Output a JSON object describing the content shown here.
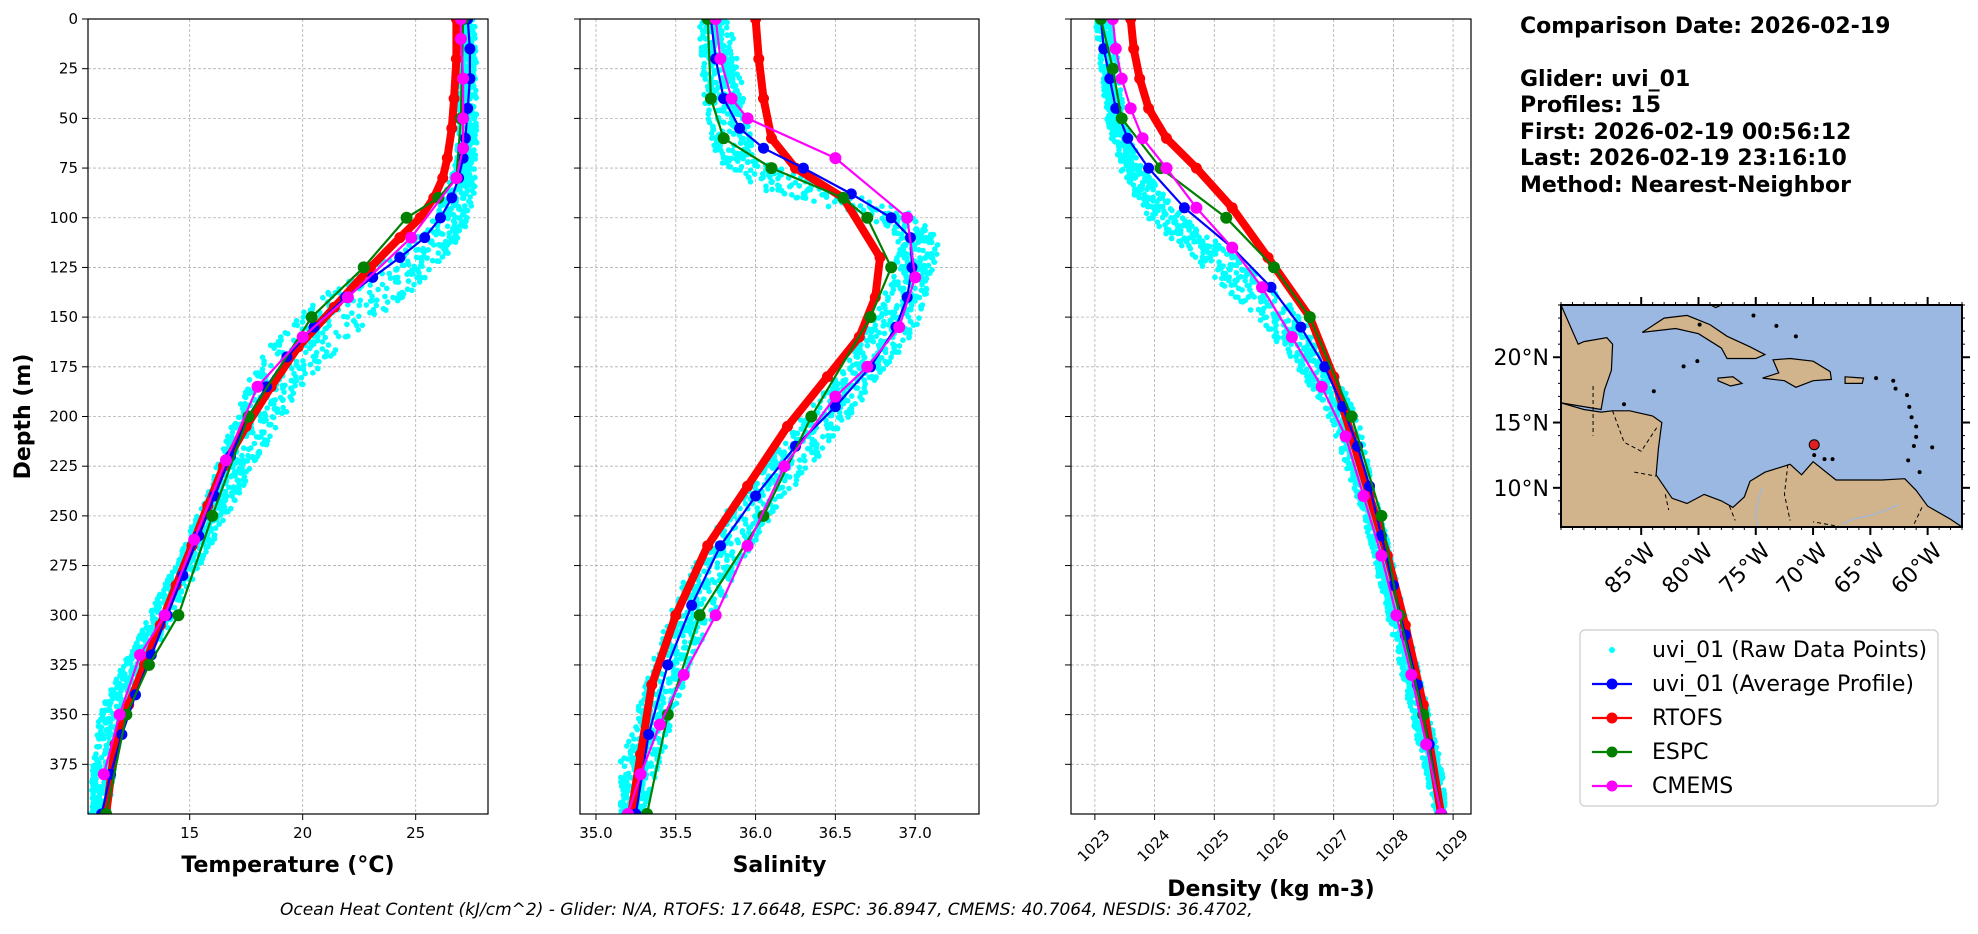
{
  "info": {
    "comparison_date": "Comparison Date: 2026-02-19",
    "glider": "Glider: uvi_01",
    "profiles": "Profiles: 15",
    "first": "First: 2026-02-19 00:56:12",
    "last": "Last: 2026-02-19 23:16:10",
    "method": "Method: Nearest-Neighbor"
  },
  "footer": "Ocean Heat Content (kJ/cm^2) - Glider: N/A,  RTOFS: 17.6648,  ESPC: 36.8947,  CMEMS: 40.7064,  NESDIS: 36.4702,",
  "colors": {
    "raw": "#00ffff",
    "average": "#0000ff",
    "rtofs": "#ff0000",
    "espc": "#008000",
    "cmems": "#ff00ff",
    "ocean": "#9ab8e2",
    "land": "#d2b48c",
    "marker": "#e02020"
  },
  "chart_data": [
    {
      "type": "line",
      "xlabel": "Temperature (°C)",
      "ylabel": "Depth (m)",
      "xlim": [
        10.5,
        28.2
      ],
      "ylim": [
        400,
        0
      ],
      "xticks": [
        15,
        20,
        25
      ],
      "yticks": [
        0,
        25,
        50,
        75,
        100,
        125,
        150,
        175,
        200,
        225,
        250,
        275,
        300,
        325,
        350,
        375
      ],
      "grid": true,
      "raw_band": [
        [
          0,
          26.8,
          27.6
        ],
        [
          25,
          26.9,
          27.7
        ],
        [
          50,
          26.9,
          27.7
        ],
        [
          70,
          26.8,
          27.7
        ],
        [
          90,
          26.2,
          27.6
        ],
        [
          105,
          25.6,
          27.2
        ],
        [
          120,
          23.8,
          26.4
        ],
        [
          140,
          20.8,
          24.5
        ],
        [
          160,
          18.8,
          22.2
        ],
        [
          180,
          17.6,
          20.3
        ],
        [
          200,
          17.0,
          19.2
        ],
        [
          225,
          16.2,
          17.8
        ],
        [
          250,
          15.3,
          16.7
        ],
        [
          275,
          14.3,
          15.5
        ],
        [
          300,
          13.2,
          14.3
        ],
        [
          325,
          12.0,
          13.1
        ],
        [
          350,
          11.0,
          12.1
        ],
        [
          375,
          10.7,
          11.7
        ],
        [
          400,
          10.6,
          11.4
        ]
      ],
      "series": [
        {
          "name": "uvi_01 (Average Profile)",
          "x": [
            27.3,
            27.4,
            27.4,
            27.3,
            27.2,
            27.1,
            26.9,
            26.6,
            26.1,
            25.4,
            24.3,
            23.1,
            21.9,
            20.5,
            19.3,
            18.4,
            17.6,
            16.8,
            16.1,
            15.4,
            14.7,
            14.0,
            13.3,
            12.6,
            12.0,
            11.5,
            11.1
          ],
          "y": [
            0,
            15,
            30,
            45,
            60,
            70,
            80,
            90,
            100,
            110,
            120,
            130,
            140,
            155,
            170,
            185,
            200,
            220,
            240,
            260,
            280,
            300,
            320,
            340,
            360,
            380,
            400
          ]
        },
        {
          "name": "RTOFS",
          "x": [
            26.8,
            26.8,
            26.7,
            26.6,
            26.4,
            26.2,
            25.8,
            25.2,
            24.3,
            23.0,
            21.4,
            19.8,
            18.6,
            17.5,
            16.5,
            15.8,
            15.1,
            14.4,
            13.7,
            13.0,
            12.3,
            11.7,
            11.3
          ],
          "y": [
            0,
            20,
            40,
            55,
            70,
            80,
            90,
            100,
            110,
            125,
            145,
            165,
            185,
            205,
            225,
            245,
            265,
            285,
            305,
            325,
            345,
            365,
            400
          ]
        },
        {
          "name": "ESPC",
          "x": [
            27.1,
            27.0,
            26.8,
            26.0,
            24.6,
            22.7,
            20.4,
            17.6,
            16.0,
            14.5,
            13.2,
            12.2,
            11.3
          ],
          "y": [
            0,
            50,
            80,
            90,
            100,
            125,
            150,
            200,
            250,
            300,
            325,
            350,
            400
          ]
        },
        {
          "name": "CMEMS",
          "x": [
            27.0,
            27.0,
            27.1,
            27.1,
            27.1,
            26.8,
            24.8,
            22.0,
            20.0,
            18.0,
            16.6,
            15.2,
            13.9,
            12.8,
            11.9,
            11.2
          ],
          "y": [
            0,
            10,
            30,
            50,
            65,
            80,
            110,
            140,
            160,
            185,
            222,
            262,
            300,
            320,
            350,
            380
          ]
        }
      ]
    },
    {
      "type": "line",
      "xlabel": "Salinity",
      "xlim": [
        34.9,
        37.4
      ],
      "ylim": [
        400,
        0
      ],
      "xticks": [
        35.0,
        35.5,
        36.0,
        36.5,
        37.0
      ],
      "tick_labels": [
        "35.0",
        "35.5",
        "36.0",
        "36.5",
        "37.0"
      ],
      "grid": true,
      "raw_band": [
        [
          0,
          35.65,
          35.85
        ],
        [
          25,
          35.65,
          35.9
        ],
        [
          50,
          35.7,
          35.95
        ],
        [
          70,
          35.75,
          36.0
        ],
        [
          85,
          36.0,
          36.45
        ],
        [
          95,
          36.5,
          36.9
        ],
        [
          105,
          36.85,
          37.1
        ],
        [
          115,
          36.9,
          37.15
        ],
        [
          130,
          36.85,
          37.1
        ],
        [
          150,
          36.75,
          37.05
        ],
        [
          175,
          36.55,
          36.85
        ],
        [
          200,
          36.3,
          36.6
        ],
        [
          225,
          36.05,
          36.35
        ],
        [
          250,
          35.8,
          36.1
        ],
        [
          275,
          35.6,
          35.9
        ],
        [
          300,
          35.45,
          35.75
        ],
        [
          325,
          35.35,
          35.6
        ],
        [
          350,
          35.25,
          35.5
        ],
        [
          375,
          35.15,
          35.4
        ],
        [
          400,
          35.15,
          35.3
        ]
      ],
      "series": [
        {
          "name": "uvi_01 (Average Profile)",
          "x": [
            35.72,
            35.75,
            35.8,
            35.9,
            36.05,
            36.3,
            36.6,
            36.85,
            36.97,
            36.98,
            36.95,
            36.88,
            36.72,
            36.5,
            36.25,
            36.0,
            35.78,
            35.6,
            35.45,
            35.33,
            35.25
          ],
          "y": [
            0,
            20,
            40,
            55,
            65,
            75,
            88,
            100,
            110,
            125,
            140,
            155,
            175,
            195,
            215,
            240,
            265,
            295,
            325,
            360,
            400
          ]
        },
        {
          "name": "RTOFS",
          "x": [
            36.0,
            36.02,
            36.05,
            36.1,
            36.25,
            36.55,
            36.78,
            36.75,
            36.65,
            36.45,
            36.2,
            35.95,
            35.7,
            35.5,
            35.35,
            35.28,
            35.22
          ],
          "y": [
            0,
            20,
            40,
            60,
            75,
            90,
            120,
            140,
            160,
            180,
            205,
            235,
            265,
            300,
            335,
            370,
            400
          ]
        },
        {
          "name": "ESPC",
          "x": [
            35.7,
            35.72,
            35.8,
            36.1,
            36.55,
            36.7,
            36.85,
            36.72,
            36.35,
            36.05,
            35.65,
            35.45,
            35.32
          ],
          "y": [
            0,
            40,
            60,
            75,
            90,
            100,
            125,
            150,
            200,
            250,
            300,
            350,
            400
          ]
        },
        {
          "name": "CMEMS",
          "x": [
            35.75,
            35.78,
            35.85,
            35.95,
            36.5,
            36.95,
            37.0,
            36.9,
            36.7,
            36.5,
            36.18,
            35.95,
            35.75,
            35.55,
            35.4,
            35.28,
            35.2
          ],
          "y": [
            0,
            20,
            40,
            50,
            70,
            100,
            130,
            155,
            175,
            190,
            225,
            265,
            300,
            330,
            355,
            380,
            400
          ]
        }
      ]
    },
    {
      "type": "line",
      "xlabel": "Density (kg m-3)",
      "xlim": [
        1022.6,
        1029.3
      ],
      "ylim": [
        400,
        0
      ],
      "xticks": [
        1023,
        1024,
        1025,
        1026,
        1027,
        1028,
        1029
      ],
      "grid": true,
      "raw_band": [
        [
          0,
          1023.0,
          1023.3
        ],
        [
          25,
          1023.1,
          1023.4
        ],
        [
          50,
          1023.2,
          1023.5
        ],
        [
          75,
          1023.4,
          1023.8
        ],
        [
          100,
          1023.9,
          1024.5
        ],
        [
          125,
          1024.8,
          1025.6
        ],
        [
          150,
          1025.7,
          1026.5
        ],
        [
          175,
          1026.4,
          1027.0
        ],
        [
          200,
          1026.9,
          1027.4
        ],
        [
          225,
          1027.2,
          1027.6
        ],
        [
          250,
          1027.5,
          1027.8
        ],
        [
          275,
          1027.7,
          1028.0
        ],
        [
          300,
          1027.9,
          1028.2
        ],
        [
          325,
          1028.1,
          1028.4
        ],
        [
          350,
          1028.3,
          1028.6
        ],
        [
          375,
          1028.5,
          1028.8
        ],
        [
          400,
          1028.7,
          1028.9
        ]
      ],
      "series": [
        {
          "name": "uvi_01 (Average Profile)",
          "x": [
            1023.1,
            1023.15,
            1023.25,
            1023.35,
            1023.55,
            1023.9,
            1024.5,
            1025.3,
            1025.95,
            1026.45,
            1026.85,
            1027.15,
            1027.4,
            1027.6,
            1027.8,
            1028.0,
            1028.2,
            1028.4,
            1028.6,
            1028.8
          ],
          "y": [
            0,
            15,
            30,
            45,
            60,
            75,
            95,
            115,
            135,
            155,
            175,
            195,
            215,
            235,
            260,
            285,
            310,
            335,
            365,
            400
          ]
        },
        {
          "name": "RTOFS",
          "x": [
            1023.6,
            1023.65,
            1023.75,
            1023.9,
            1024.2,
            1024.7,
            1025.3,
            1025.9,
            1026.6,
            1027.0,
            1027.3,
            1027.6,
            1027.9,
            1028.2,
            1028.5,
            1028.8
          ],
          "y": [
            0,
            15,
            30,
            45,
            60,
            75,
            95,
            120,
            150,
            180,
            210,
            240,
            270,
            305,
            345,
            400
          ]
        },
        {
          "name": "ESPC",
          "x": [
            1023.1,
            1023.3,
            1023.45,
            1024.1,
            1025.2,
            1026.0,
            1026.6,
            1027.3,
            1027.8,
            1028.1,
            1028.5,
            1028.8
          ],
          "y": [
            0,
            25,
            50,
            75,
            100,
            125,
            150,
            200,
            250,
            300,
            350,
            400
          ]
        },
        {
          "name": "CMEMS",
          "x": [
            1023.3,
            1023.35,
            1023.45,
            1023.6,
            1023.8,
            1024.2,
            1024.7,
            1025.3,
            1025.8,
            1026.3,
            1026.8,
            1027.2,
            1027.5,
            1027.8,
            1028.05,
            1028.3,
            1028.55,
            1028.8
          ],
          "y": [
            0,
            15,
            30,
            45,
            60,
            75,
            95,
            115,
            135,
            160,
            185,
            210,
            240,
            270,
            300,
            330,
            365,
            400
          ]
        }
      ]
    }
  ],
  "map": {
    "lon_range": [
      -92,
      -57
    ],
    "lat_range": [
      7,
      24
    ],
    "lat_labels": [
      "20°N",
      "15°N",
      "10°N"
    ],
    "lat_values": [
      20,
      15,
      10
    ],
    "lon_labels": [
      "85°W",
      "80°W",
      "75°W",
      "70°W",
      "65°W",
      "60°W"
    ],
    "lon_values": [
      -85,
      -80,
      -75,
      -70,
      -65,
      -60
    ],
    "glider_location": [
      -69.9,
      13.3
    ]
  },
  "legend": {
    "placement": "right",
    "entries": [
      {
        "label": "uvi_01 (Raw Data Points)",
        "kind": "raw"
      },
      {
        "label": "uvi_01 (Average Profile)",
        "kind": "average"
      },
      {
        "label": "RTOFS",
        "kind": "rtofs"
      },
      {
        "label": "ESPC",
        "kind": "espc"
      },
      {
        "label": "CMEMS",
        "kind": "cmems"
      }
    ]
  }
}
